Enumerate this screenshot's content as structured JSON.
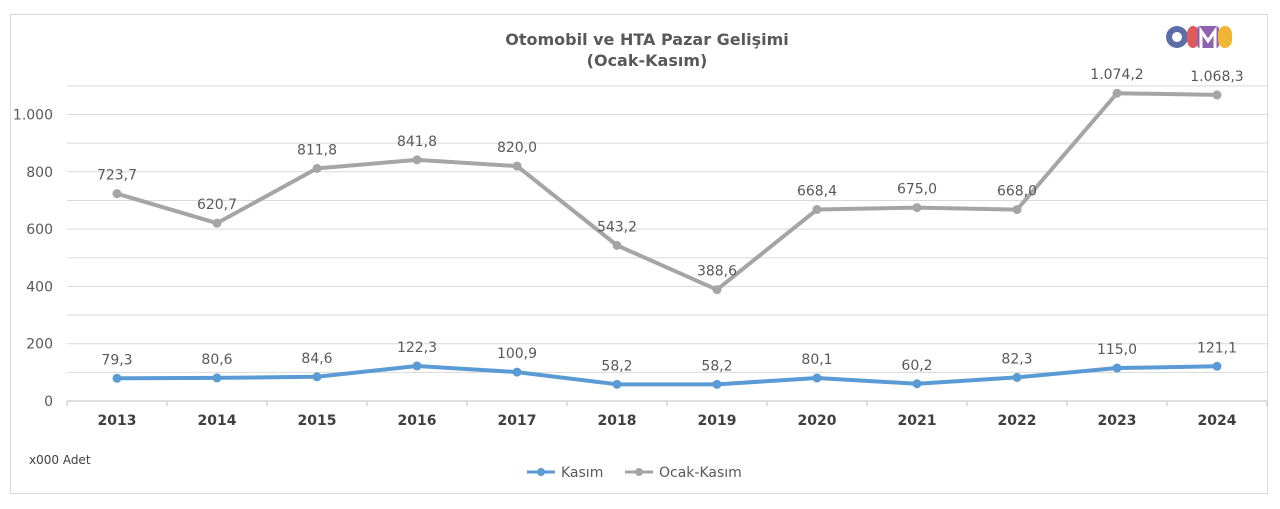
{
  "chart_data": {
    "type": "line",
    "title": "Otomobil ve HTA Pazar Gelişimi",
    "subtitle": "(Ocak-Kasım)",
    "unit_label": "x000 Adet",
    "categories": [
      "2013",
      "2014",
      "2015",
      "2016",
      "2017",
      "2018",
      "2019",
      "2020",
      "2021",
      "2022",
      "2023",
      "2024"
    ],
    "series": [
      {
        "name": "Kasım",
        "color": "#5b9bd5",
        "values": [
          79.3,
          80.6,
          84.6,
          122.3,
          100.9,
          58.2,
          58.2,
          80.1,
          60.2,
          82.3,
          115.0,
          121.1
        ],
        "labels": [
          "79,3",
          "80,6",
          "84,6",
          "122,3",
          "100,9",
          "58,2",
          "58,2",
          "80,1",
          "60,2",
          "82,3",
          "115,0",
          "121,1"
        ]
      },
      {
        "name": "Ocak-Kasım",
        "color": "#a5a5a5",
        "values": [
          723.7,
          620.7,
          811.8,
          841.8,
          820.0,
          543.2,
          388.6,
          668.4,
          675.0,
          668.0,
          1074.2,
          1068.3
        ],
        "labels": [
          "723,7",
          "620,7",
          "811,8",
          "841,8",
          "820,0",
          "543,2",
          "388,6",
          "668,4",
          "675,0",
          "668,0",
          "1.074,2",
          "1.068,3"
        ]
      }
    ],
    "y_ticks": [
      {
        "value": 0,
        "label": "0"
      },
      {
        "value": 200,
        "label": "200"
      },
      {
        "value": 400,
        "label": "400"
      },
      {
        "value": 600,
        "label": "600"
      },
      {
        "value": 800,
        "label": "800"
      },
      {
        "value": 1000,
        "label": "1.000"
      }
    ],
    "ylim": [
      0,
      1200
    ],
    "grid": true,
    "legend_position": "bottom"
  },
  "logo": {
    "text": "ODMD",
    "colors": [
      "#5b6ea8",
      "#e05a5a",
      "#8e62b0",
      "#f2b632"
    ]
  }
}
